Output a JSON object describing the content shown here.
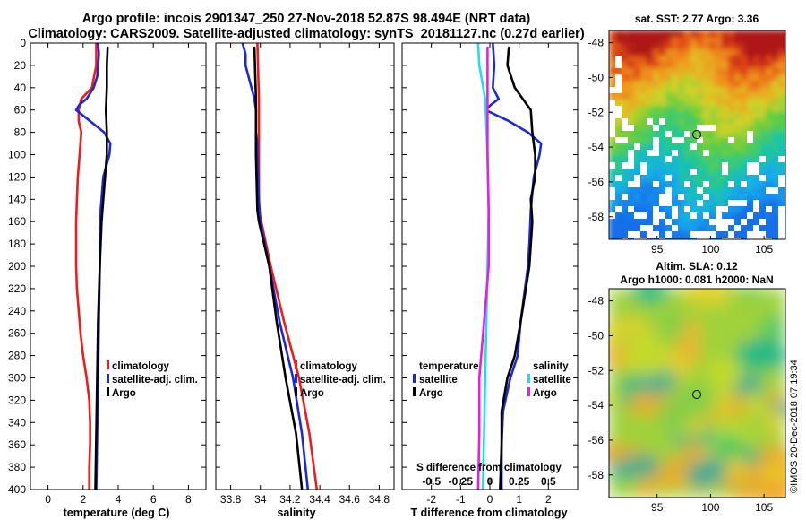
{
  "title": {
    "line1": "Argo profile: incois 2901347_250 27-Nov-2018 52.87S 98.494E (NRT data)",
    "line2": "Climatology: CARS2009. Satellite-adjusted climatology: synTS_20181127.nc (0.27d earlier)"
  },
  "colors": {
    "climatology": "#ee1c1c",
    "satellite_adj": "#1c28d6",
    "argo": "#000000",
    "sat_salinity": "#22dde6",
    "argo_salinity": "#e81ee8"
  },
  "chart_data": [
    {
      "type": "line",
      "name": "temperature",
      "xlabel": "temperature (deg C)",
      "ylabel": "",
      "xlim": [
        -1,
        9
      ],
      "ylim": [
        400,
        0
      ],
      "x_ticks": [
        0,
        2,
        4,
        6,
        8
      ],
      "x_tick_labels": [
        "0",
        "2",
        "4",
        "6",
        "8"
      ],
      "y_ticks": [
        0,
        20,
        40,
        60,
        80,
        100,
        120,
        140,
        160,
        180,
        200,
        220,
        240,
        260,
        280,
        300,
        320,
        340,
        360,
        380,
        400
      ],
      "legend": [
        "climatology",
        "satellite-adj. clim.",
        "Argo"
      ],
      "legend_position": "lower-right",
      "series": [
        {
          "name": "climatology",
          "color": "#ee1c1c",
          "depth": [
            0,
            20,
            40,
            50,
            60,
            70,
            80,
            100,
            120,
            140,
            160,
            180,
            200,
            220,
            240,
            260,
            280,
            300,
            320,
            340,
            360,
            380,
            400
          ],
          "values": [
            2.75,
            2.75,
            2.5,
            1.9,
            1.75,
            1.75,
            1.9,
            1.8,
            1.7,
            1.65,
            1.6,
            1.6,
            1.6,
            1.65,
            1.75,
            1.85,
            2.0,
            2.2,
            2.35,
            2.4,
            2.4,
            2.35,
            2.35
          ]
        },
        {
          "name": "satellite-adj. clim.",
          "color": "#1c28d6",
          "depth": [
            0,
            10,
            20,
            30,
            40,
            50,
            55,
            60,
            65,
            70,
            80,
            90,
            100,
            120,
            150,
            180,
            200,
            250,
            300,
            350,
            400
          ],
          "values": [
            2.85,
            2.9,
            2.85,
            2.8,
            2.6,
            2.2,
            1.8,
            1.6,
            2.0,
            2.4,
            3.2,
            3.55,
            3.5,
            3.15,
            3.0,
            2.95,
            2.95,
            2.9,
            2.85,
            2.8,
            2.75
          ]
        },
        {
          "name": "Argo",
          "color": "#000000",
          "depth": [
            4,
            20,
            40,
            60,
            80,
            100,
            120,
            160,
            200,
            250,
            300,
            350,
            400
          ],
          "values": [
            3.4,
            3.35,
            3.35,
            3.3,
            3.35,
            3.35,
            3.25,
            3.05,
            2.95,
            2.85,
            2.8,
            2.75,
            2.7
          ]
        }
      ]
    },
    {
      "type": "line",
      "name": "salinity",
      "xlabel": "salinity",
      "ylabel": "",
      "xlim": [
        33.7,
        34.9
      ],
      "ylim": [
        400,
        0
      ],
      "x_ticks": [
        33.8,
        34,
        34.2,
        34.4,
        34.6,
        34.8
      ],
      "x_tick_labels": [
        "33.8",
        "34",
        "34.2",
        "34.4",
        "34.6",
        "34.8"
      ],
      "legend": [
        "climatology",
        "satellite-adj. clim.",
        "Argo"
      ],
      "legend_position": "lower-right",
      "series": [
        {
          "name": "climatology",
          "color": "#ee1c1c",
          "depth": [
            0,
            50,
            100,
            150,
            200,
            250,
            300,
            350,
            400
          ],
          "values": [
            33.98,
            33.99,
            33.99,
            33.99,
            34.07,
            34.16,
            34.26,
            34.33,
            34.38
          ]
        },
        {
          "name": "satellite-adj. clim.",
          "color": "#1c28d6",
          "depth": [
            0,
            10,
            20,
            30,
            40,
            50,
            60,
            70,
            80,
            90,
            100,
            140,
            160,
            200,
            250,
            300,
            350,
            400
          ],
          "values": [
            33.88,
            33.9,
            33.9,
            33.92,
            33.94,
            33.96,
            33.97,
            33.97,
            33.97,
            33.98,
            33.98,
            33.99,
            34.0,
            34.06,
            34.13,
            34.22,
            34.28,
            34.32
          ]
        },
        {
          "name": "Argo",
          "color": "#000000",
          "depth": [
            4,
            50,
            100,
            150,
            160,
            200,
            250,
            300,
            350,
            400
          ],
          "values": [
            33.96,
            33.97,
            33.97,
            33.98,
            33.99,
            34.06,
            34.11,
            34.17,
            34.24,
            34.28
          ]
        }
      ]
    },
    {
      "type": "line",
      "name": "difference from climatology",
      "xlabel": "T difference from climatology",
      "x2label": "S difference from climatology",
      "ylabel": "",
      "xlim": [
        -3,
        3
      ],
      "ylim": [
        400,
        0
      ],
      "x_ticks": [
        -2,
        -1,
        0,
        1,
        2
      ],
      "x_tick_labels": [
        "-2",
        "-1",
        "0",
        "1",
        "2"
      ],
      "x2lim": [
        -0.75,
        0.75
      ],
      "x2_ticks": [
        -0.5,
        -0.25,
        0,
        0.25,
        0.5
      ],
      "x2_tick_labels": [
        "-0.5",
        "-0.25",
        "0",
        "0.25",
        "0.5"
      ],
      "legend_temperature_title": "temperature",
      "legend_salinity_title": "salinity",
      "legend": [
        "satellite",
        "Argo",
        "satellite",
        "Argo"
      ],
      "legend_position": "lower-center",
      "series": [
        {
          "name": "temperature satellite",
          "color": "#1c28d6",
          "axis": "T",
          "depth": [
            0,
            20,
            40,
            50,
            55,
            60,
            65,
            70,
            80,
            90,
            100,
            120,
            150,
            180,
            200,
            250,
            280,
            300,
            330,
            360,
            400
          ],
          "values": [
            0.1,
            0.15,
            0.1,
            0.3,
            0.05,
            -0.15,
            0.25,
            0.65,
            1.3,
            1.75,
            1.7,
            1.5,
            1.4,
            1.35,
            1.3,
            1.05,
            0.95,
            0.7,
            0.45,
            0.4,
            0.4
          ]
        },
        {
          "name": "temperature Argo",
          "color": "#000000",
          "axis": "T",
          "depth": [
            4,
            20,
            40,
            60,
            80,
            100,
            120,
            140,
            160,
            200,
            250,
            280,
            300,
            330,
            360,
            400
          ],
          "values": [
            0.65,
            0.6,
            0.85,
            1.4,
            1.45,
            1.55,
            1.55,
            1.4,
            1.45,
            1.35,
            1.05,
            0.85,
            0.6,
            0.4,
            0.4,
            0.35
          ]
        },
        {
          "name": "salinity satellite",
          "color": "#22dde6",
          "axis": "S",
          "depth": [
            0,
            20,
            50,
            100,
            150,
            200,
            250,
            300,
            350,
            400
          ],
          "values": [
            -0.1,
            -0.09,
            -0.04,
            -0.02,
            -0.01,
            -0.02,
            -0.03,
            -0.04,
            -0.05,
            -0.06
          ]
        },
        {
          "name": "salinity Argo",
          "color": "#e81ee8",
          "axis": "S",
          "depth": [
            4,
            20,
            50,
            100,
            150,
            200,
            250,
            300,
            350,
            400
          ],
          "values": [
            -0.02,
            -0.02,
            -0.02,
            -0.02,
            -0.01,
            -0.01,
            -0.05,
            -0.09,
            -0.09,
            -0.1
          ]
        }
      ]
    },
    {
      "type": "heatmap",
      "name": "sea surface temperature map",
      "title": "sat. SST: 2.77 Argo: 3.36",
      "x_ticks": [
        95,
        100,
        105
      ],
      "y_ticks": [
        -48,
        -50,
        -52,
        -54,
        -56,
        -58
      ],
      "xlim": [
        90.5,
        107
      ],
      "ylim": [
        -59.3,
        -47.3
      ],
      "marker": {
        "lon": 98.494,
        "lat": -52.87
      }
    },
    {
      "type": "heatmap",
      "name": "sea level anomaly map",
      "title_line1": "Altim. SLA: 0.12",
      "title_line2": "Argo h1000: 0.081 h2000: NaN",
      "x_ticks": [
        95,
        100,
        105
      ],
      "y_ticks": [
        -48,
        -50,
        -52,
        -54,
        -56,
        -58
      ],
      "xlim": [
        90.5,
        107
      ],
      "ylim": [
        -59.3,
        -47.3
      ],
      "marker": {
        "lon": 98.494,
        "lat": -52.87
      }
    }
  ],
  "stamp": "©IMOS 20-Dec-2018 07:19:34"
}
